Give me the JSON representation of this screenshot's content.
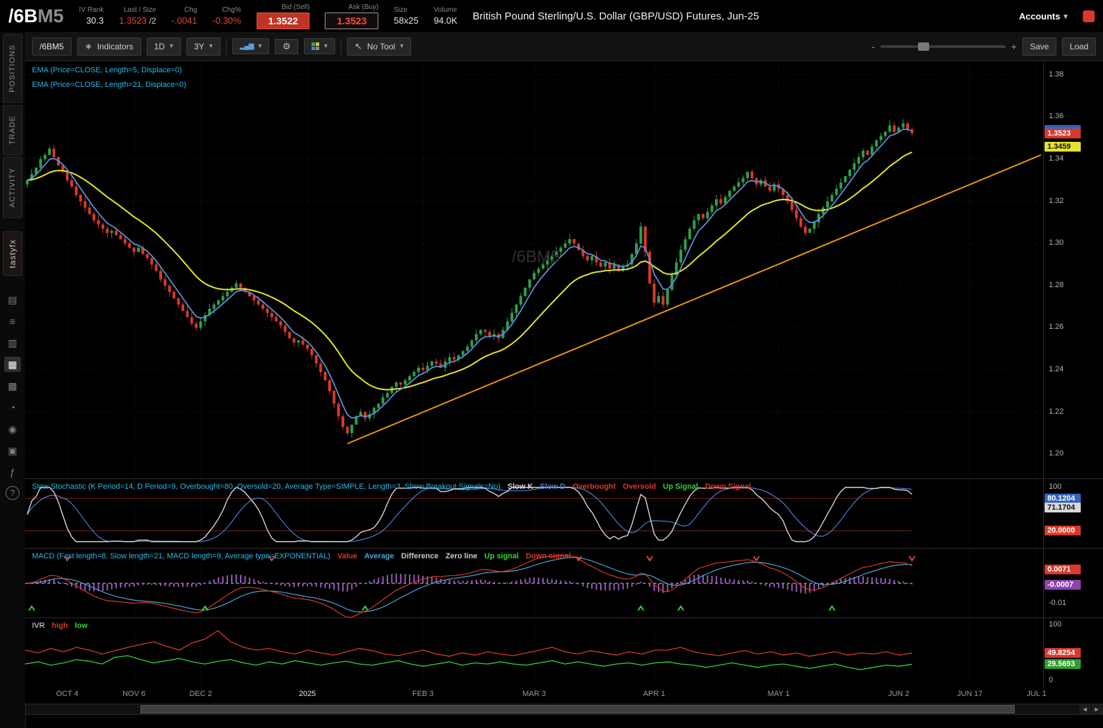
{
  "header": {
    "symbol": "/6B",
    "symbol_suffix": "M5",
    "iv_rank": {
      "label": "IV Rank",
      "value": "30.3"
    },
    "last": {
      "label": "Last / Size",
      "value": "1.3523",
      "size": "/2"
    },
    "chg": {
      "label": "Chg",
      "value": "-.0041"
    },
    "chg_pct": {
      "label": "Chg%",
      "value": "-0.30%"
    },
    "bid_label": "Bid (Sell)",
    "bid": "1.3522",
    "ask_label": "Ask (Buy)",
    "ask": "1.3523",
    "size_label": "Size",
    "size": "58x25",
    "volume_label": "Volume",
    "volume": "94.0K",
    "description": "British Pound Sterling/U.S. Dollar (GBP/USD) Futures, Jun-25",
    "accounts_label": "Accounts"
  },
  "sidebar": {
    "tabs": [
      "POSITIONS",
      "TRADE",
      "ACTIVITY"
    ],
    "brand": "tastyfx",
    "icons": [
      "notes-icon",
      "orders-icon",
      "calendar-icon",
      "chart-icon",
      "layout-icon",
      "history-icon",
      "alerts-icon",
      "archive-icon",
      "fx-icon",
      "help-icon"
    ],
    "active_icon": "chart-icon"
  },
  "toolbar": {
    "symbol": "/6BM5",
    "indicators": "Indicators",
    "timeframe": "1D",
    "range": "3Y",
    "no_tool": "No Tool",
    "save": "Save",
    "load": "Load",
    "zoom_out": "-",
    "zoom_in": "+"
  },
  "studies": {
    "ema1": "EMA (Price=CLOSE, Length=5, Displace=0)",
    "ema2": "EMA (Price=CLOSE, Length=21, Displace=0)"
  },
  "chart_data": {
    "type": "candlestick",
    "title": "British Pound Sterling/U.S. Dollar (GBP/USD) Futures, Jun-25",
    "watermark": "/6BM5",
    "price_axis_labels": [
      "1.38",
      "1.36",
      "1.34",
      "1.32",
      "1.30",
      "1.28",
      "1.26",
      "1.24",
      "1.22",
      "1.20"
    ],
    "price_range": [
      1.1885,
      1.3865
    ],
    "badges": {
      "last": {
        "value": "1.3523",
        "bg": "#d8392c",
        "fg": "#ffffff"
      },
      "ema_slow": {
        "value": "1.3459",
        "bg": "#e6e32e",
        "fg": "#111111"
      }
    },
    "ema_fast_length": 5,
    "ema_slow_length": 21,
    "colors": {
      "up": "#2f9e4f",
      "down": "#d8392c",
      "ema_fast": "#5b8fd9",
      "ema_slow": "#e6e32e",
      "trendline": "#e8940a"
    },
    "trendline": {
      "start_index": 72,
      "start_price": 1.205,
      "end_index": 228,
      "end_price": 1.342
    },
    "total_slots": 229,
    "closes": [
      1.33,
      1.333,
      1.336,
      1.34,
      1.342,
      1.345,
      1.341,
      1.337,
      1.334,
      1.33,
      1.327,
      1.323,
      1.32,
      1.317,
      1.314,
      1.311,
      1.309,
      1.307,
      1.305,
      1.306,
      1.304,
      1.302,
      1.3,
      1.298,
      1.296,
      1.298,
      1.295,
      1.293,
      1.29,
      1.287,
      1.283,
      1.28,
      1.277,
      1.274,
      1.271,
      1.268,
      1.265,
      1.262,
      1.26,
      1.263,
      1.266,
      1.269,
      1.271,
      1.273,
      1.275,
      1.277,
      1.279,
      1.281,
      1.279,
      1.277,
      1.275,
      1.273,
      1.271,
      1.269,
      1.267,
      1.265,
      1.263,
      1.261,
      1.258,
      1.255,
      1.253,
      1.254,
      1.252,
      1.25,
      1.247,
      1.243,
      1.239,
      1.235,
      1.23,
      1.224,
      1.218,
      1.213,
      1.21,
      1.214,
      1.218,
      1.22,
      1.217,
      1.219,
      1.222,
      1.224,
      1.227,
      1.229,
      1.232,
      1.234,
      1.233,
      1.235,
      1.237,
      1.239,
      1.241,
      1.24,
      1.242,
      1.244,
      1.243,
      1.241,
      1.244,
      1.246,
      1.245,
      1.247,
      1.249,
      1.251,
      1.254,
      1.257,
      1.259,
      1.258,
      1.256,
      1.257,
      1.255,
      1.259,
      1.263,
      1.267,
      1.271,
      1.275,
      1.279,
      1.283,
      1.286,
      1.288,
      1.29,
      1.292,
      1.294,
      1.296,
      1.298,
      1.3,
      1.302,
      1.3,
      1.297,
      1.294,
      1.292,
      1.294,
      1.291,
      1.289,
      1.291,
      1.288,
      1.29,
      1.287,
      1.289,
      1.29,
      1.295,
      1.3,
      1.308,
      1.296,
      1.281,
      1.272,
      1.275,
      1.271,
      1.278,
      1.285,
      1.291,
      1.297,
      1.302,
      1.307,
      1.311,
      1.314,
      1.312,
      1.315,
      1.318,
      1.321,
      1.319,
      1.322,
      1.325,
      1.327,
      1.329,
      1.331,
      1.334,
      1.331,
      1.328,
      1.33,
      1.327,
      1.325,
      1.328,
      1.326,
      1.323,
      1.32,
      1.316,
      1.312,
      1.308,
      1.305,
      1.307,
      1.31,
      1.314,
      1.317,
      1.32,
      1.323,
      1.326,
      1.329,
      1.332,
      1.335,
      1.338,
      1.341,
      1.344,
      1.342,
      1.346,
      1.349,
      1.351,
      1.353,
      1.356,
      1.353,
      1.355,
      1.357,
      1.354,
      1.3523
    ]
  },
  "stochastic": {
    "title": "Slow Stochastic (K Period=14, D Period=9, Overbought=80, Oversold=20, Average Type=SIMPLE, Length=3, Show Breakout Signals=No)",
    "legend": [
      {
        "label": "Slow K",
        "color": "#d8d8d8"
      },
      {
        "label": "Slow D",
        "color": "#4a7fd4"
      },
      {
        "label": "Overbought",
        "color": "#d8392c"
      },
      {
        "label": "Oversold",
        "color": "#d8392c"
      },
      {
        "label": "Up Signal",
        "color": "#35d435"
      },
      {
        "label": "Down Signal",
        "color": "#d8392c"
      }
    ],
    "k_period": 14,
    "d_period": 9,
    "length": 3,
    "overbought": 80,
    "oversold": 20,
    "axis_labels": [
      {
        "text": "100",
        "value": 100
      }
    ],
    "badges": [
      {
        "value": "80.1204",
        "bg": "#3565c2",
        "fg": "#ffffff"
      },
      {
        "value": "71.1704",
        "bg": "#d8d8d8",
        "fg": "#111111"
      },
      {
        "value": "20.0000",
        "bg": "#d8392c",
        "fg": "#ffffff"
      }
    ]
  },
  "macd": {
    "title": "MACD (Fast length=8, Slow length=21, MACD length=9, Average type=EXPONENTIAL)",
    "legend": [
      {
        "label": "Value",
        "color": "#d8392c"
      },
      {
        "label": "Average",
        "color": "#4aa3d4"
      },
      {
        "label": "Difference",
        "color": "#c8c8c8"
      },
      {
        "label": "Zero line",
        "color": "#c8c8c8"
      },
      {
        "label": "Up signal",
        "color": "#35d435"
      },
      {
        "label": "Down signal",
        "color": "#d8392c"
      }
    ],
    "fast": 8,
    "slow": 21,
    "signal": 9,
    "range": [
      -0.014,
      0.014
    ],
    "axis_labels": [
      {
        "text": "-0.01",
        "value": -0.01
      }
    ],
    "badges": [
      {
        "value": "0.0071",
        "bg": "#d8392c",
        "fg": "#ffffff"
      },
      {
        "value": "-0.0007",
        "bg": "#8e44ad",
        "fg": "#ffffff"
      }
    ]
  },
  "ivr": {
    "title": "IVR",
    "legend": [
      {
        "label": "high",
        "color": "#d8392c"
      },
      {
        "label": "low",
        "color": "#35d435"
      }
    ],
    "axis_labels": [
      {
        "text": "100",
        "value": 100
      },
      {
        "text": "0",
        "value": 0
      }
    ],
    "badges": [
      {
        "value": "49.8254",
        "bg": "#d8392c",
        "fg": "#ffffff"
      },
      {
        "value": "29.5693",
        "bg": "#2e9e2e",
        "fg": "#ffffff"
      }
    ],
    "high": [
      55,
      50,
      58,
      52,
      60,
      55,
      48,
      54,
      60,
      65,
      70,
      62,
      55,
      68,
      75,
      90,
      70,
      60,
      55,
      58,
      52,
      48,
      55,
      50,
      46,
      52,
      58,
      54,
      48,
      45,
      50,
      55,
      48,
      44,
      50,
      46,
      52,
      48,
      45,
      50,
      55,
      60,
      52,
      48,
      54,
      50,
      46,
      52,
      48,
      55,
      55,
      60,
      52,
      48,
      45,
      50,
      54,
      48,
      52,
      46,
      50,
      44,
      48,
      52,
      46,
      50,
      48,
      52,
      46,
      49.8
    ],
    "low": [
      30,
      34,
      28,
      32,
      38,
      35,
      30,
      42,
      45,
      38,
      32,
      36,
      40,
      34,
      30,
      35,
      38,
      32,
      28,
      34,
      30,
      36,
      32,
      28,
      32,
      35,
      30,
      28,
      32,
      36,
      30,
      26,
      30,
      34,
      28,
      32,
      30,
      34,
      30,
      28,
      32,
      36,
      30,
      34,
      30,
      26,
      30,
      32,
      28,
      32,
      34,
      30,
      28,
      24,
      28,
      32,
      28,
      24,
      28,
      30,
      26,
      22,
      26,
      30,
      24,
      20,
      24,
      28,
      26,
      29.6
    ]
  },
  "xaxis": {
    "ticks": [
      {
        "label": "OCT 4",
        "index": 9
      },
      {
        "label": "NOV 6",
        "index": 24
      },
      {
        "label": "DEC 2",
        "index": 39
      },
      {
        "label": "2025",
        "index": 63,
        "strong": true
      },
      {
        "label": "FEB 3",
        "index": 89
      },
      {
        "label": "MAR 3",
        "index": 114
      },
      {
        "label": "APR 1",
        "index": 141
      },
      {
        "label": "MAY 1",
        "index": 169
      },
      {
        "label": "JUN 2",
        "index": 196
      },
      {
        "label": "JUN 17",
        "index": 212
      },
      {
        "label": "JUL 1",
        "index": 227
      }
    ]
  }
}
